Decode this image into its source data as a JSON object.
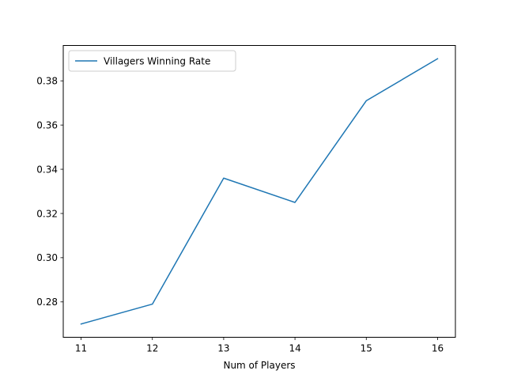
{
  "chart_data": {
    "type": "line",
    "title": "",
    "xlabel": "Num of Players",
    "ylabel": "",
    "x": [
      11,
      12,
      13,
      14,
      15,
      16
    ],
    "series": [
      {
        "name": "Villagers Winning Rate",
        "values": [
          0.27,
          0.279,
          0.336,
          0.325,
          0.371,
          0.39
        ],
        "color": "#1f77b4"
      }
    ],
    "xlim": [
      10.75,
      16.25
    ],
    "ylim": [
      0.264,
      0.396
    ],
    "xticks": [
      "11",
      "12",
      "13",
      "14",
      "15",
      "16"
    ],
    "yticks": [
      "0.28",
      "0.30",
      "0.32",
      "0.34",
      "0.36",
      "0.38"
    ],
    "grid": false,
    "legend_position": "top-left"
  }
}
